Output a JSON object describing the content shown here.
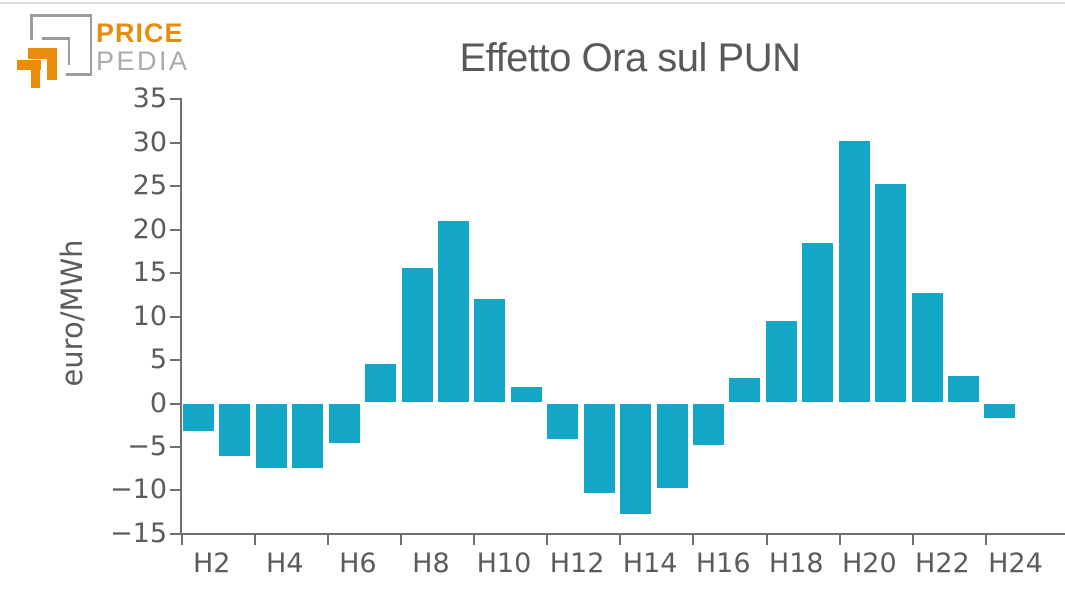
{
  "page": {
    "top_border_color": "#dcdcdc",
    "background": "#ffffff"
  },
  "logo": {
    "line1": "PRICE",
    "line2": "PEDIA",
    "orange": "#E88C0C",
    "mark_gray": "#9c9c9c",
    "text_gray": "#ababab"
  },
  "chart_data": {
    "type": "bar",
    "title": "Effetto Ora sul PUN",
    "xlabel": "",
    "ylabel": "euro/MWh",
    "unit": "euro/MWh",
    "categories": [
      "H2",
      "H3",
      "H4",
      "H5",
      "H6",
      "H7",
      "H8",
      "H9",
      "H10",
      "H11",
      "H12",
      "H13",
      "H14",
      "H15",
      "H16",
      "H17",
      "H18",
      "H19",
      "H20",
      "H21",
      "H22",
      "H23",
      "H24"
    ],
    "values": [
      -3.2,
      -6.0,
      -7.4,
      -7.4,
      -4.5,
      4.4,
      15.5,
      20.9,
      11.9,
      1.8,
      -4.1,
      -10.3,
      -12.7,
      -9.7,
      -4.8,
      2.8,
      9.4,
      18.4,
      30.1,
      25.1,
      12.6,
      3.0,
      -1.7
    ],
    "x_tick_labels": [
      "H2",
      "H4",
      "H6",
      "H8",
      "H10",
      "H12",
      "H14",
      "H16",
      "H18",
      "H20",
      "H22",
      "H24"
    ],
    "y_ticks": [
      35,
      30,
      25,
      20,
      15,
      10,
      5,
      0,
      -5,
      -10,
      -15
    ],
    "ylim": [
      -15,
      35
    ],
    "grid": false,
    "legend": null,
    "bar_color": "#13a6c7",
    "axis_color": "#707070",
    "text_color": "#5c5c5c",
    "title_color": "#58595b"
  }
}
